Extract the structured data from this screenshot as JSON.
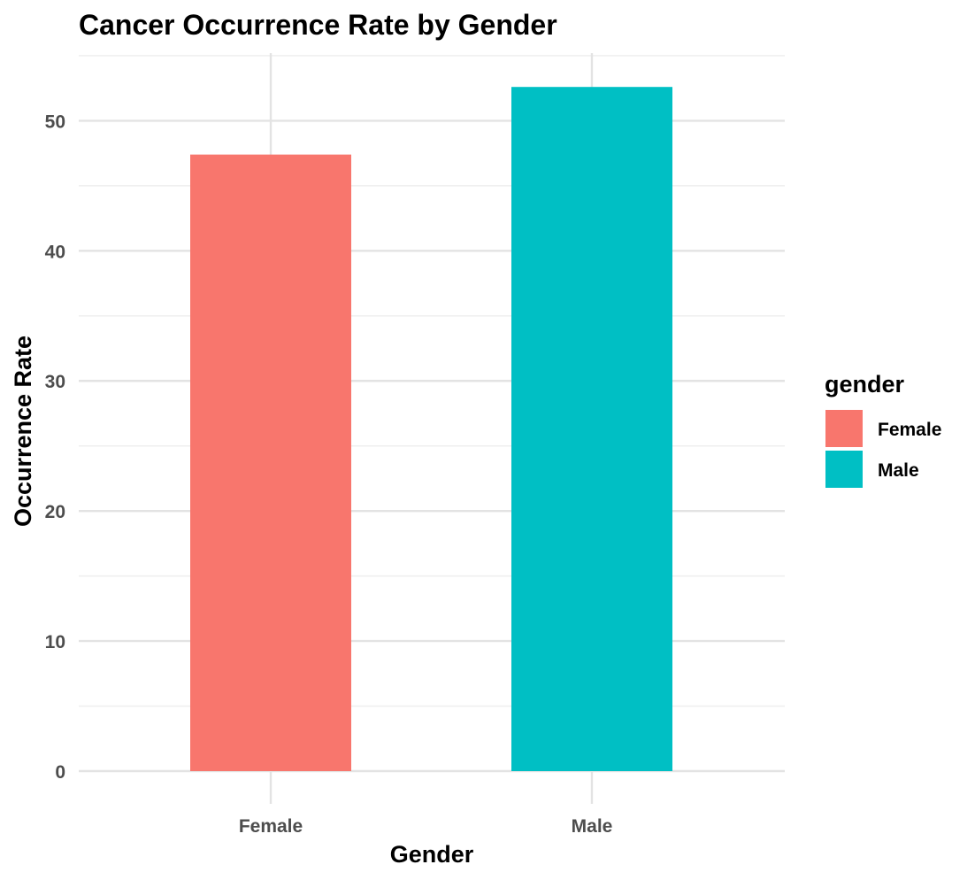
{
  "chart_data": {
    "type": "bar",
    "title": "Cancer Occurrence Rate by Gender",
    "xlabel": "Gender",
    "ylabel": "Occurrence Rate",
    "categories": [
      "Female",
      "Male"
    ],
    "values": [
      47.4,
      52.6
    ],
    "colors": [
      "#F8766D",
      "#00BFC4"
    ],
    "ylim": [
      0,
      55.2
    ],
    "yticks": [
      0,
      10,
      20,
      30,
      40,
      50
    ],
    "grid": true,
    "legend": {
      "title": "gender",
      "placement": "right",
      "items": [
        {
          "label": "Female",
          "color": "#F8766D"
        },
        {
          "label": "Male",
          "color": "#00BFC4"
        }
      ]
    }
  }
}
